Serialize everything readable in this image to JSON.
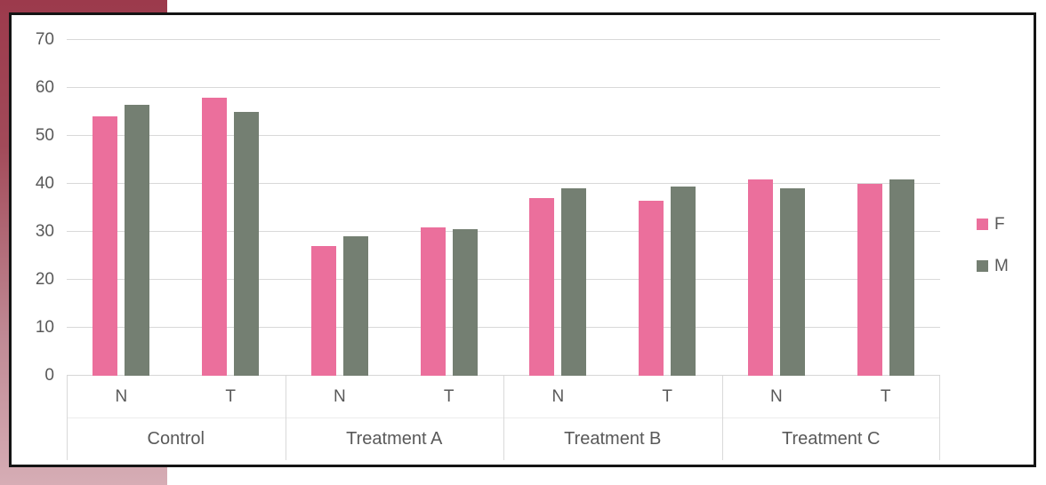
{
  "background": {
    "accent_gradient_top": "#9c3a4c",
    "accent_gradient_bottom": "#d6adb5"
  },
  "panel": {
    "border_color": "#141414",
    "background": "#ffffff"
  },
  "chart_data": {
    "type": "bar",
    "title": "",
    "groups": [
      "Control",
      "Treatment A",
      "Treatment B",
      "Treatment C"
    ],
    "subcategories": [
      "N",
      "T"
    ],
    "categories": [
      "Control N",
      "Control T",
      "Treatment A N",
      "Treatment A T",
      "Treatment B N",
      "Treatment B T",
      "Treatment C N",
      "Treatment C T"
    ],
    "series": [
      {
        "name": "F",
        "color": "#eb6f9c",
        "values": [
          54,
          58,
          27,
          31,
          37,
          36.5,
          41,
          40
        ]
      },
      {
        "name": "M",
        "color": "#747f72",
        "values": [
          56.5,
          55,
          29,
          30.5,
          39,
          39.5,
          39,
          41
        ]
      }
    ],
    "y_ticks": [
      0,
      10,
      20,
      30,
      40,
      50,
      60,
      70
    ],
    "ylim": [
      0,
      70
    ],
    "grid": true,
    "gridline_color": "#d9d9d9",
    "text_color": "#595959",
    "legend_position": "right",
    "legend_labels": [
      "F",
      "M"
    ]
  }
}
